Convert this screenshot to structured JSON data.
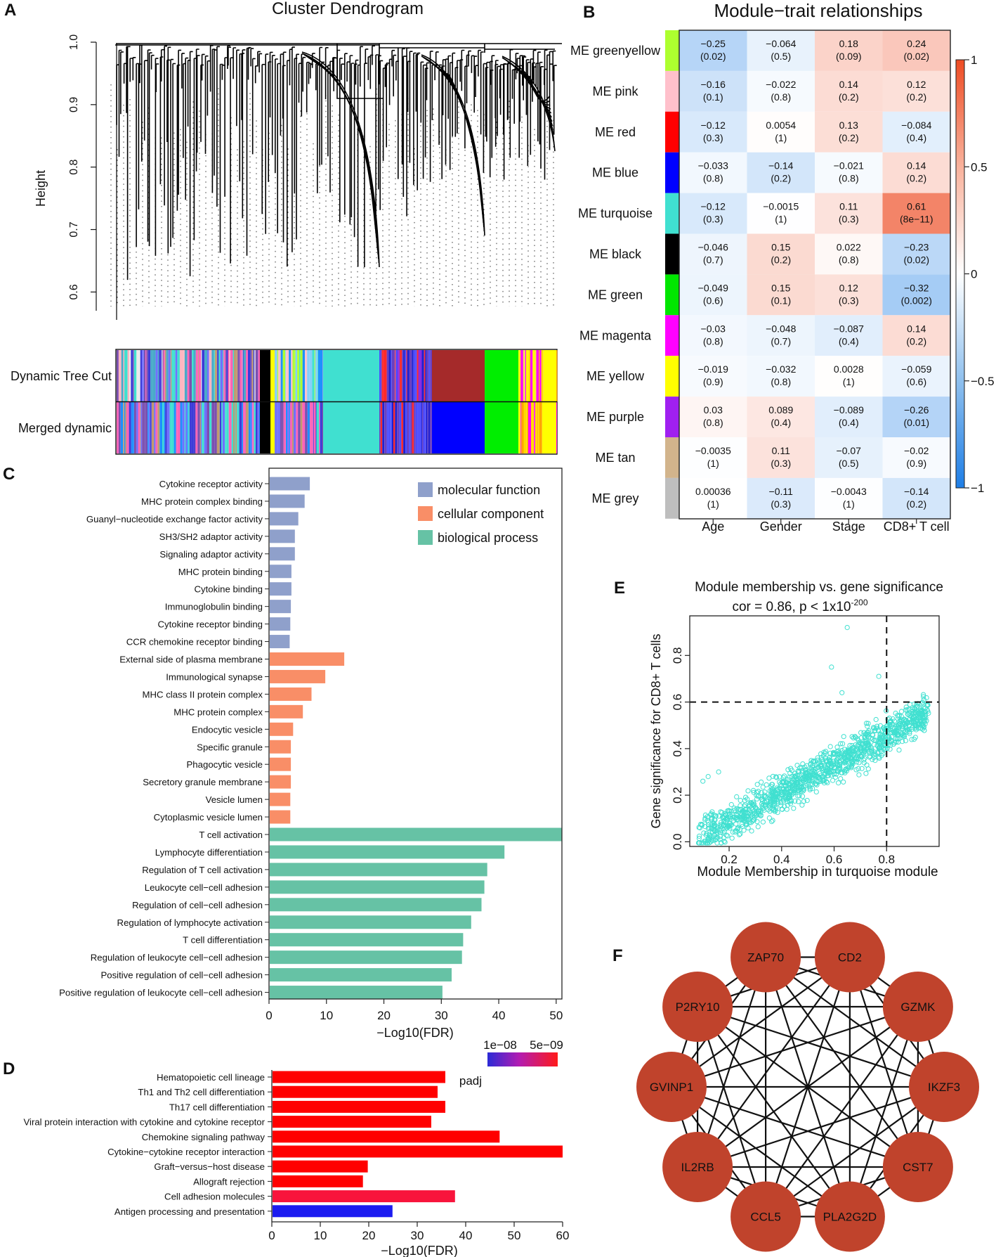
{
  "panel_labels": [
    "A",
    "B",
    "C",
    "D",
    "E",
    "F"
  ],
  "panel_a": {
    "title": "Cluster Dendrogram",
    "ylabel": "Height",
    "y_ticks": [
      "1.0",
      "0.9",
      "0.8",
      "0.7",
      "0.6"
    ],
    "y_tick_values": [
      1.0,
      0.9,
      0.8,
      0.7,
      0.6
    ],
    "ylim": [
      0.57,
      1.0
    ],
    "row_labels": [
      "Dynamic Tree Cut",
      "Merged dynamic"
    ]
  },
  "panel_b": {
    "title": "Module−trait relationships",
    "columns": [
      "Age",
      "Gender",
      "Stage",
      "CD8+ T cell"
    ],
    "rows": [
      {
        "label": "ME greenyellow",
        "color": "#adff2f",
        "cells": [
          [
            "−0.25",
            "(0.02)"
          ],
          [
            "−0.064",
            "(0.5)"
          ],
          [
            "0.18",
            "(0.09)"
          ],
          [
            "0.24",
            "(0.02)"
          ]
        ]
      },
      {
        "label": "ME pink",
        "color": "#ffc0cb",
        "cells": [
          [
            "−0.16",
            "(0.1)"
          ],
          [
            "−0.022",
            "(0.8)"
          ],
          [
            "0.14",
            "(0.2)"
          ],
          [
            "0.12",
            "(0.2)"
          ]
        ]
      },
      {
        "label": "ME red",
        "color": "#ff0000",
        "cells": [
          [
            "−0.12",
            "(0.3)"
          ],
          [
            "0.0054",
            "(1)"
          ],
          [
            "0.13",
            "(0.2)"
          ],
          [
            "−0.084",
            "(0.4)"
          ]
        ]
      },
      {
        "label": "ME blue",
        "color": "#0000ff",
        "cells": [
          [
            "−0.033",
            "(0.8)"
          ],
          [
            "−0.14",
            "(0.2)"
          ],
          [
            "−0.021",
            "(0.8)"
          ],
          [
            "0.14",
            "(0.2)"
          ]
        ]
      },
      {
        "label": "ME turquoise",
        "color": "#40e0d0",
        "cells": [
          [
            "−0.12",
            "(0.3)"
          ],
          [
            "−0.0015",
            "(1)"
          ],
          [
            "0.11",
            "(0.3)"
          ],
          [
            "0.61",
            "(8e−11)"
          ]
        ]
      },
      {
        "label": "ME black",
        "color": "#000000",
        "cells": [
          [
            "−0.046",
            "(0.7)"
          ],
          [
            "0.15",
            "(0.2)"
          ],
          [
            "0.022",
            "(0.8)"
          ],
          [
            "−0.23",
            "(0.02)"
          ]
        ]
      },
      {
        "label": "ME green",
        "color": "#00e600",
        "cells": [
          [
            "−0.049",
            "(0.6)"
          ],
          [
            "0.15",
            "(0.1)"
          ],
          [
            "0.12",
            "(0.3)"
          ],
          [
            "−0.32",
            "(0.002)"
          ]
        ]
      },
      {
        "label": "ME magenta",
        "color": "#ff00ff",
        "cells": [
          [
            "−0.03",
            "(0.8)"
          ],
          [
            "−0.048",
            "(0.7)"
          ],
          [
            "−0.087",
            "(0.4)"
          ],
          [
            "0.14",
            "(0.2)"
          ]
        ]
      },
      {
        "label": "ME yellow",
        "color": "#ffff00",
        "cells": [
          [
            "−0.019",
            "(0.9)"
          ],
          [
            "−0.032",
            "(0.8)"
          ],
          [
            "0.0028",
            "(1)"
          ],
          [
            "−0.059",
            "(0.6)"
          ]
        ]
      },
      {
        "label": "ME purple",
        "color": "#a020f0",
        "cells": [
          [
            "0.03",
            "(0.8)"
          ],
          [
            "0.089",
            "(0.4)"
          ],
          [
            "−0.089",
            "(0.4)"
          ],
          [
            "−0.26",
            "(0.01)"
          ]
        ]
      },
      {
        "label": "ME tan",
        "color": "#d2b48c",
        "cells": [
          [
            "−0.0035",
            "(1)"
          ],
          [
            "0.11",
            "(0.3)"
          ],
          [
            "−0.07",
            "(0.5)"
          ],
          [
            "−0.02",
            "(0.9)"
          ]
        ]
      },
      {
        "label": "ME grey",
        "color": "#bebebe",
        "cells": [
          [
            "0.00036",
            "(1)"
          ],
          [
            "−0.11",
            "(0.3)"
          ],
          [
            "−0.0043",
            "(1)"
          ],
          [
            "−0.14",
            "(0.2)"
          ]
        ]
      }
    ],
    "colorbar_ticks": [
      "1",
      "0.5",
      "0",
      "−0.5",
      "−1"
    ],
    "colorbar_tick_values": [
      1,
      0.5,
      0,
      -0.5,
      -1
    ]
  },
  "chart_data": [
    {
      "type": "bar",
      "orientation": "horizontal",
      "panel": "C",
      "xlabel": "−Log10(FDR)",
      "xlim": [
        0,
        51
      ],
      "x_ticks": [
        0,
        10,
        20,
        30,
        40,
        50
      ],
      "legend": [
        {
          "name": "molecular function",
          "color": "#8fa0cb"
        },
        {
          "name": "cellular component",
          "color": "#f98e67"
        },
        {
          "name": "biological process",
          "color": "#66c2a5"
        }
      ],
      "categories": [
        "Cytokine receptor activity",
        "MHC protein complex binding",
        "Guanyl−nucleotide exchange factor activity",
        "SH3/SH2 adaptor activity",
        "Signaling adaptor activity",
        "MHC protein binding",
        "Cytokine binding",
        "Immunoglobulin binding",
        "Cytokine receptor binding",
        "CCR chemokine receptor binding",
        "External side of plasma membrane",
        "Immunological synapse",
        "MHC class II protein complex",
        "MHC protein complex",
        "Endocytic vesicle",
        "Specific granule",
        "Phagocytic vesicle",
        "Secretory granule membrane",
        "Vesicle lumen",
        "Cytoplasmic vesicle lumen",
        "T cell activation",
        "Lymphocyte differentiation",
        "Regulation of T cell activation",
        "Leukocyte cell−cell adhesion",
        "Regulation of cell−cell adhesion",
        "Regulation of lymphocyte activation",
        "T cell differentiation",
        "Regulation of leukocyte cell−cell adhesion",
        "Positive regulation of cell−cell adhesion",
        "Positive regulation of leukocyte cell−cell adhesion"
      ],
      "values": [
        7.1,
        6.2,
        5.1,
        4.5,
        4.5,
        3.9,
        3.9,
        3.8,
        3.7,
        3.6,
        13.1,
        9.8,
        7.4,
        5.9,
        4.2,
        3.8,
        3.8,
        3.8,
        3.7,
        3.7,
        51,
        41,
        38,
        37.5,
        37,
        35.2,
        33.8,
        33.6,
        31.8,
        30.2
      ],
      "groups": [
        "molecular function",
        "molecular function",
        "molecular function",
        "molecular function",
        "molecular function",
        "molecular function",
        "molecular function",
        "molecular function",
        "molecular function",
        "molecular function",
        "cellular component",
        "cellular component",
        "cellular component",
        "cellular component",
        "cellular component",
        "cellular component",
        "cellular component",
        "cellular component",
        "cellular component",
        "cellular component",
        "biological process",
        "biological process",
        "biological process",
        "biological process",
        "biological process",
        "biological process",
        "biological process",
        "biological process",
        "biological process",
        "biological process"
      ]
    },
    {
      "type": "bar",
      "orientation": "horizontal",
      "panel": "D",
      "xlabel": "−Log10(FDR)",
      "xlim": [
        0,
        60
      ],
      "x_ticks": [
        0,
        10,
        20,
        30,
        40,
        50,
        60
      ],
      "legend_title": "padj",
      "legend_ticks": [
        "1e−08",
        "5e−09"
      ],
      "categories": [
        "Hematopoietic cell lineage",
        "Th1 and Th2 cell differentiation",
        "Th17 cell differentiation",
        "Viral protein interaction with cytokine and cytokine receptor",
        "Chemokine signaling pathway",
        "Cytokine−cytokine receptor interaction",
        "Graft−versus−host disease",
        "Allograft rejection",
        "Cell adhesion molecules",
        "Antigen processing and presentation"
      ],
      "values": [
        35.8,
        34.2,
        35.8,
        32.9,
        47,
        60,
        19.8,
        18.8,
        37.8,
        24.9
      ],
      "colors": [
        "#ff0000",
        "#ff0000",
        "#ff0000",
        "#ff0000",
        "#ff0000",
        "#ff0000",
        "#ff0000",
        "#ff0000",
        "#f8143c",
        "#1c1cf0"
      ]
    },
    {
      "type": "scatter",
      "panel": "E",
      "title": "Module membership vs. gene significance",
      "subtitle_main": "cor = 0.86, p < 1x10",
      "subtitle_sup": "-200",
      "xlabel": "Module Membership in turquoise module",
      "ylabel": "Gene significance for CD8+ T cells",
      "xlim": [
        0.05,
        1.0
      ],
      "ylim": [
        -0.02,
        0.97
      ],
      "x_ticks": [
        0.2,
        0.4,
        0.6,
        0.8
      ],
      "y_ticks": [
        0.0,
        0.2,
        0.4,
        0.6,
        0.8
      ],
      "hline": 0.6,
      "vline": 0.8,
      "n_points": 1200,
      "color": "#40e0d0",
      "outliers": [
        [
          0.65,
          0.92
        ],
        [
          0.59,
          0.75
        ],
        [
          0.63,
          0.64
        ],
        [
          0.12,
          0.28
        ],
        [
          0.1,
          0.26
        ],
        [
          0.16,
          0.3
        ],
        [
          0.77,
          0.71
        ]
      ]
    }
  ],
  "panel_f": {
    "genes": [
      "ZAP70",
      "CD2",
      "GZMK",
      "IKZF3",
      "CST7",
      "PLA2G2D",
      "CCL5",
      "IL2RB",
      "GVINP1",
      "P2RY10"
    ],
    "node_color": "#c0432c"
  }
}
